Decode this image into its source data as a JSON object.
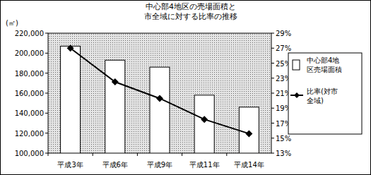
{
  "chart_data": {
    "type": "bar",
    "title": "中心部4地区の売場面積と\n市全域に対する比率の推移",
    "y_label": "(㎡)",
    "categories": [
      "平成3年",
      "平成6年",
      "平成9年",
      "平成11年",
      "平成14年"
    ],
    "series": [
      {
        "name": "中心部4地区売場面積",
        "type": "bar",
        "color": "#ffffff",
        "values": [
          207000,
          193000,
          186000,
          158000,
          146000
        ]
      },
      {
        "name": "比率(対市全域)",
        "type": "line",
        "axis": "y2",
        "color": "#000000",
        "marker": "diamond",
        "values": [
          27.0,
          22.5,
          20.3,
          17.5,
          15.6
        ]
      }
    ],
    "ylim": [
      100000,
      220000
    ],
    "yticks": [
      {
        "value": 100000,
        "label": "100,000"
      },
      {
        "value": 120000,
        "label": "120,000"
      },
      {
        "value": 140000,
        "label": "140,000"
      },
      {
        "value": 160000,
        "label": "160,000"
      },
      {
        "value": 180000,
        "label": "180,000"
      },
      {
        "value": 200000,
        "label": "200,000"
      },
      {
        "value": 220000,
        "label": "220,000"
      }
    ],
    "y2lim": [
      13,
      29
    ],
    "y2ticks": [
      {
        "value": 13,
        "label": "13%"
      },
      {
        "value": 15,
        "label": "15%"
      },
      {
        "value": 17,
        "label": "17%"
      },
      {
        "value": 19,
        "label": "19%"
      },
      {
        "value": 21,
        "label": "21%"
      },
      {
        "value": 23,
        "label": "23%"
      },
      {
        "value": 25,
        "label": "25%"
      },
      {
        "value": 27,
        "label": "27%"
      },
      {
        "value": 29,
        "label": "29%"
      }
    ],
    "grid": false,
    "legend": "right"
  }
}
